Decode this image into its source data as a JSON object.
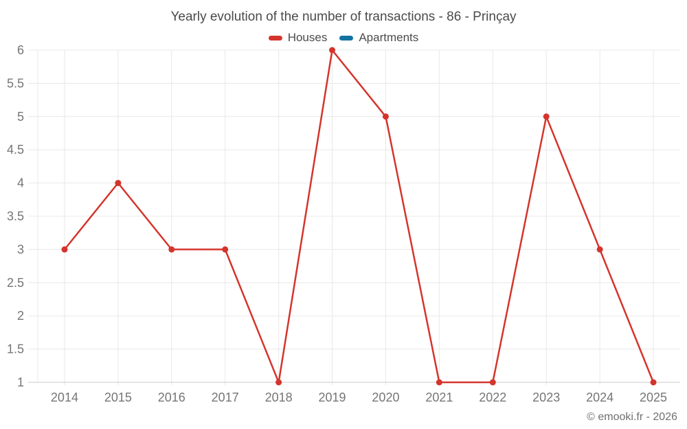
{
  "title": "Yearly evolution of the number of transactions - 86 - Prinçay",
  "footer": "© emooki.fr - 2026",
  "legend": [
    {
      "label": "Houses",
      "color": "#d4342c"
    },
    {
      "label": "Apartments",
      "color": "#1173a2"
    }
  ],
  "colors": {
    "background": "#ffffff",
    "grid": "#e8e8e8",
    "axis": "#c9c9c9",
    "tick_label": "#757575",
    "title_text": "#4a4a4a",
    "legend_text": "#4b4b4b",
    "footer_text": "#6f6f6f"
  },
  "chart_data": {
    "type": "line",
    "title": "Yearly evolution of the number of transactions - 86 - Prinçay",
    "categories": [
      "2014",
      "2015",
      "2016",
      "2017",
      "2018",
      "2019",
      "2020",
      "2021",
      "2022",
      "2023",
      "2024",
      "2025"
    ],
    "series": [
      {
        "name": "Houses",
        "color": "#d4342c",
        "values": [
          3,
          4,
          3,
          3,
          1,
          6,
          5,
          1,
          1,
          5,
          3,
          1
        ]
      },
      {
        "name": "Apartments",
        "color": "#1173a2",
        "values": []
      }
    ],
    "xlabel": "",
    "ylabel": "",
    "ylim": [
      1,
      6
    ],
    "ytick_step": 0.5,
    "grid": true,
    "legend_position": "top",
    "marker_radius": 4.5,
    "line_width": 2.5
  }
}
